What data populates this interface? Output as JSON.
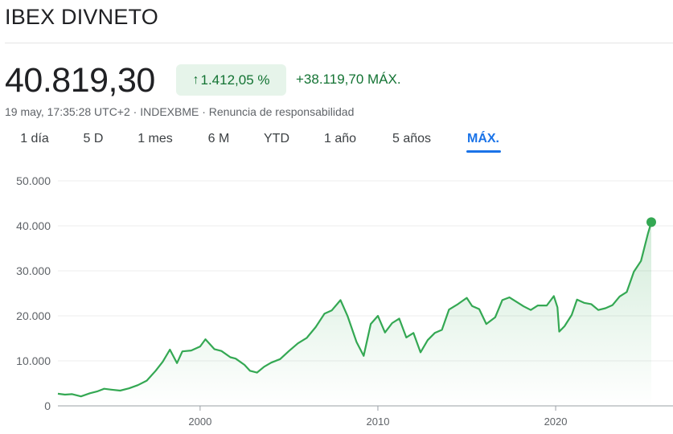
{
  "header": {
    "title": "IBEX DIVNETO"
  },
  "quote": {
    "price": "40.819,30",
    "change_pct": "1.412,05 %",
    "change_abs": "+38.119,70 MÁX.",
    "meta": "19 may, 17:35:28 UTC+2 · INDEXBME · Renuncia de responsabilidad"
  },
  "colors": {
    "up": "#34a853",
    "up_text": "#137333",
    "badge_bg": "#e6f4ea",
    "active_tab": "#1a73e8"
  },
  "icons": {
    "change_arrow": "arrow-up-icon"
  },
  "tabs": [
    {
      "label": "1 día"
    },
    {
      "label": "5 D"
    },
    {
      "label": "1 mes"
    },
    {
      "label": "6 M"
    },
    {
      "label": "YTD"
    },
    {
      "label": "1 año"
    },
    {
      "label": "5 años"
    },
    {
      "label": "MÁX.",
      "active": true
    }
  ],
  "chart_data": {
    "type": "area",
    "title": "",
    "xlabel": "",
    "ylabel": "",
    "ylim": [
      0,
      50000
    ],
    "xlim": [
      1992.0,
      2025.38
    ],
    "yticks": [
      {
        "value": 0,
        "label": "0"
      },
      {
        "value": 10000,
        "label": "10.000"
      },
      {
        "value": 20000,
        "label": "20.000"
      },
      {
        "value": 30000,
        "label": "30.000"
      },
      {
        "value": 40000,
        "label": "40.000"
      },
      {
        "value": 50000,
        "label": "50.000"
      }
    ],
    "xticks": [
      {
        "value": 2000,
        "label": "2000"
      },
      {
        "value": 2010,
        "label": "2010"
      },
      {
        "value": 2020,
        "label": "2020"
      }
    ],
    "grid": true,
    "series": [
      {
        "color": "#34a853",
        "x": [
          1992.0,
          1992.4,
          1992.8,
          1993.3,
          1993.8,
          1994.2,
          1994.6,
          1995.0,
          1995.5,
          1996.0,
          1996.5,
          1997.0,
          1997.5,
          1997.9,
          1998.3,
          1998.7,
          1999.0,
          1999.5,
          2000.0,
          2000.3,
          2000.8,
          2001.2,
          2001.7,
          2002.0,
          2002.5,
          2002.8,
          2003.2,
          2003.6,
          2004.0,
          2004.5,
          2005.0,
          2005.5,
          2006.0,
          2006.5,
          2007.0,
          2007.4,
          2007.9,
          2008.3,
          2008.8,
          2009.2,
          2009.6,
          2010.0,
          2010.4,
          2010.8,
          2011.2,
          2011.6,
          2012.0,
          2012.4,
          2012.8,
          2013.2,
          2013.6,
          2014.0,
          2014.5,
          2015.0,
          2015.3,
          2015.7,
          2016.1,
          2016.6,
          2017.0,
          2017.4,
          2017.8,
          2018.2,
          2018.6,
          2019.0,
          2019.5,
          2019.9,
          2020.1,
          2020.2,
          2020.5,
          2020.9,
          2021.2,
          2021.6,
          2022.0,
          2022.4,
          2022.8,
          2023.2,
          2023.6,
          2024.0,
          2024.4,
          2024.8,
          2025.0,
          2025.2,
          2025.38
        ],
        "values": [
          2700,
          2500,
          2600,
          2100,
          2800,
          3200,
          3800,
          3600,
          3400,
          3900,
          4600,
          5600,
          7800,
          9800,
          12500,
          9500,
          12100,
          12300,
          13200,
          14800,
          12600,
          12200,
          10800,
          10500,
          9100,
          7800,
          7400,
          8700,
          9600,
          10400,
          12200,
          13900,
          15100,
          17500,
          20500,
          21200,
          23500,
          19900,
          14200,
          11100,
          18200,
          20000,
          16300,
          18400,
          19400,
          15200,
          16200,
          11900,
          14600,
          16200,
          16900,
          21400,
          22600,
          24000,
          22200,
          21500,
          18200,
          19700,
          23500,
          24100,
          23100,
          22100,
          21300,
          22300,
          22300,
          24400,
          21900,
          16500,
          17700,
          20200,
          23600,
          22900,
          22600,
          21300,
          21700,
          22400,
          24300,
          25300,
          29800,
          32200,
          35300,
          38400,
          40800
        ]
      }
    ],
    "last_point": {
      "x": 2025.38,
      "y": 40819.3
    }
  }
}
